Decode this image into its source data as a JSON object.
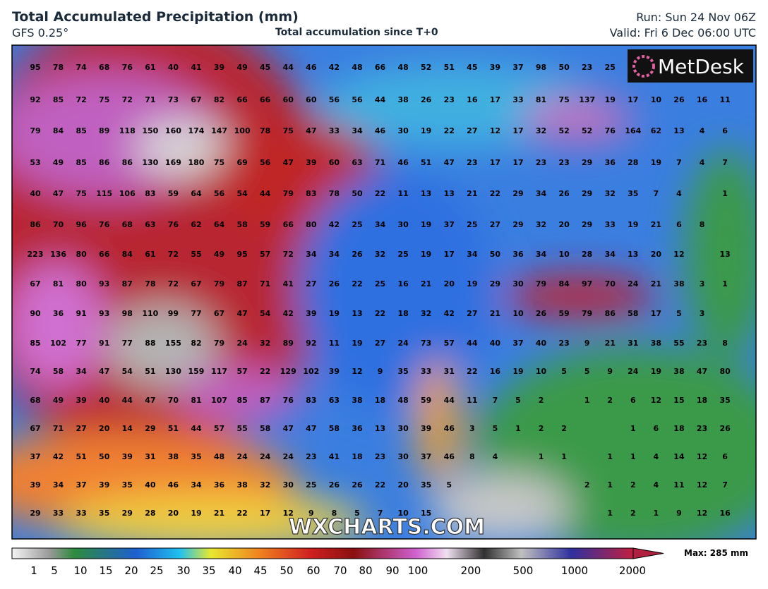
{
  "header": {
    "title": "Total Accumulated Precipitation (mm)",
    "model": "GFS 0.25°",
    "subtitle": "Total accumulation since T+0",
    "run": "Run: Sun 24 Nov 06Z",
    "valid": "Valid: Fri 6 Dec 06:00 UTC"
  },
  "logo": "MetDesk",
  "watermark": "WXCHARTS.COM",
  "map": {
    "values": [
      [
        95,
        78,
        74,
        68,
        76,
        61,
        40,
        41,
        39,
        49,
        45,
        44,
        46,
        42,
        48,
        66,
        48,
        52,
        51,
        45,
        39,
        37,
        98,
        50,
        23,
        25,
        null,
        null,
        null,
        null,
        null
      ],
      [
        92,
        85,
        72,
        75,
        72,
        71,
        73,
        67,
        82,
        66,
        66,
        60,
        60,
        56,
        56,
        44,
        38,
        26,
        23,
        16,
        17,
        33,
        81,
        75,
        137,
        19,
        17,
        10,
        26,
        16,
        11
      ],
      [
        79,
        84,
        85,
        89,
        118,
        150,
        160,
        174,
        147,
        100,
        78,
        75,
        47,
        33,
        34,
        46,
        30,
        19,
        22,
        27,
        12,
        17,
        32,
        52,
        52,
        76,
        164,
        62,
        13,
        4,
        6
      ],
      [
        53,
        49,
        85,
        86,
        86,
        130,
        169,
        180,
        75,
        69,
        56,
        47,
        39,
        60,
        63,
        71,
        46,
        51,
        47,
        23,
        17,
        17,
        23,
        23,
        29,
        36,
        28,
        19,
        7,
        4,
        7
      ],
      [
        40,
        47,
        75,
        115,
        106,
        83,
        59,
        64,
        56,
        54,
        44,
        79,
        83,
        78,
        50,
        22,
        11,
        13,
        13,
        21,
        22,
        29,
        34,
        26,
        29,
        32,
        35,
        7,
        4,
        null,
        1
      ],
      [
        86,
        70,
        96,
        76,
        68,
        63,
        76,
        62,
        64,
        58,
        59,
        66,
        80,
        42,
        25,
        34,
        30,
        19,
        37,
        25,
        27,
        29,
        32,
        20,
        29,
        33,
        19,
        21,
        6,
        8,
        null
      ],
      [
        223,
        136,
        80,
        66,
        84,
        61,
        72,
        55,
        49,
        95,
        57,
        72,
        34,
        34,
        26,
        32,
        25,
        19,
        17,
        34,
        50,
        36,
        34,
        10,
        28,
        34,
        13,
        20,
        12,
        null,
        13
      ],
      [
        67,
        81,
        80,
        93,
        87,
        78,
        72,
        67,
        79,
        87,
        71,
        41,
        27,
        26,
        22,
        25,
        16,
        21,
        20,
        19,
        29,
        30,
        79,
        84,
        97,
        70,
        24,
        21,
        38,
        3,
        1
      ],
      [
        90,
        36,
        91,
        93,
        98,
        110,
        99,
        77,
        67,
        47,
        54,
        42,
        39,
        19,
        13,
        22,
        18,
        32,
        42,
        27,
        21,
        10,
        26,
        59,
        79,
        86,
        58,
        17,
        5,
        3,
        null
      ],
      [
        85,
        102,
        77,
        91,
        77,
        88,
        155,
        82,
        79,
        24,
        32,
        89,
        92,
        11,
        19,
        27,
        24,
        73,
        57,
        44,
        40,
        37,
        40,
        23,
        9,
        21,
        31,
        38,
        55,
        23,
        8
      ],
      [
        74,
        58,
        34,
        47,
        54,
        51,
        130,
        159,
        117,
        57,
        22,
        129,
        102,
        39,
        12,
        9,
        35,
        33,
        31,
        22,
        16,
        19,
        10,
        5,
        5,
        9,
        24,
        19,
        38,
        47,
        80
      ],
      [
        68,
        49,
        39,
        40,
        44,
        47,
        70,
        81,
        107,
        85,
        87,
        76,
        83,
        63,
        38,
        18,
        48,
        59,
        44,
        11,
        7,
        5,
        2,
        null,
        1,
        2,
        6,
        12,
        15,
        18,
        35
      ],
      [
        67,
        71,
        27,
        20,
        14,
        29,
        51,
        44,
        57,
        55,
        58,
        47,
        47,
        58,
        36,
        13,
        30,
        39,
        46,
        3,
        5,
        1,
        2,
        2,
        null,
        null,
        1,
        6,
        18,
        23,
        26
      ],
      [
        37,
        42,
        51,
        50,
        39,
        31,
        38,
        35,
        48,
        24,
        24,
        24,
        23,
        41,
        18,
        23,
        30,
        37,
        46,
        8,
        4,
        null,
        1,
        1,
        null,
        1,
        1,
        4,
        14,
        12,
        6
      ],
      [
        39,
        34,
        37,
        39,
        35,
        40,
        46,
        34,
        36,
        38,
        32,
        30,
        25,
        26,
        26,
        22,
        20,
        35,
        5,
        null,
        null,
        null,
        null,
        null,
        2,
        1,
        2,
        4,
        11,
        12,
        7
      ],
      [
        29,
        33,
        33,
        35,
        29,
        28,
        20,
        19,
        21,
        22,
        17,
        12,
        9,
        8,
        5,
        7,
        10,
        15,
        null,
        null,
        null,
        null,
        null,
        null,
        null,
        1,
        2,
        1,
        9,
        12,
        16
      ]
    ]
  },
  "legend": {
    "ticks": [
      1,
      5,
      10,
      15,
      20,
      25,
      30,
      35,
      40,
      45,
      50,
      60,
      70,
      80,
      90,
      100,
      200,
      500,
      1000,
      2000
    ],
    "max": "Max: 285 mm"
  }
}
